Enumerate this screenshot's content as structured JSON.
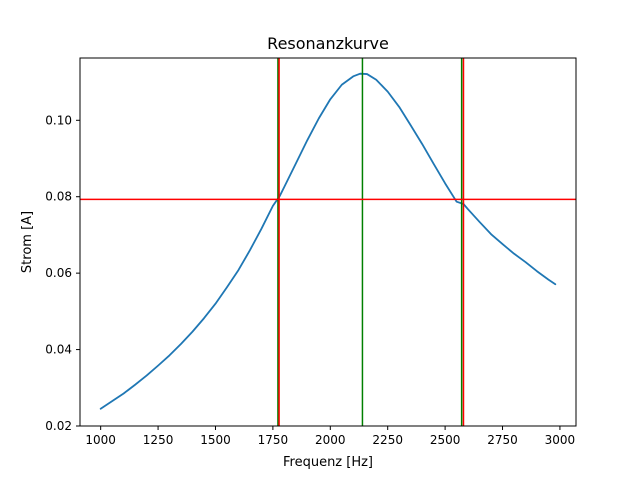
{
  "chart_data": {
    "type": "line",
    "title": "Resonanzkurve",
    "xlabel": "Frequenz [Hz]",
    "ylabel": "Strom [A]",
    "xlim": [
      910,
      3070
    ],
    "ylim": [
      0.02,
      0.1163
    ],
    "x_ticks": [
      1000,
      1250,
      1500,
      1750,
      2000,
      2250,
      2500,
      2750,
      3000
    ],
    "x_tick_labels": [
      "1000",
      "1250",
      "1500",
      "1750",
      "2000",
      "2250",
      "2500",
      "2750",
      "3000"
    ],
    "y_ticks": [
      0.02,
      0.04,
      0.06,
      0.08,
      0.1
    ],
    "y_tick_labels": [
      "0.02",
      "0.04",
      "0.06",
      "0.08",
      "0.10"
    ],
    "grid": false,
    "series": [
      {
        "color": "#1f77b4",
        "x": [
          1000,
          1050,
          1100,
          1150,
          1200,
          1250,
          1300,
          1350,
          1400,
          1450,
          1500,
          1550,
          1600,
          1650,
          1700,
          1750,
          1780,
          1800,
          1850,
          1900,
          1950,
          2000,
          2050,
          2100,
          2130,
          2160,
          2200,
          2250,
          2300,
          2350,
          2400,
          2450,
          2500,
          2550,
          2580,
          2600,
          2650,
          2700,
          2750,
          2800,
          2850,
          2900,
          2950,
          2980
        ],
        "y": [
          0.0245,
          0.0265,
          0.0285,
          0.0308,
          0.0332,
          0.0358,
          0.0385,
          0.0415,
          0.0447,
          0.0482,
          0.052,
          0.0563,
          0.0608,
          0.066,
          0.0716,
          0.0776,
          0.0802,
          0.0826,
          0.0887,
          0.0948,
          0.1005,
          0.1055,
          0.1093,
          0.1115,
          0.1122,
          0.1121,
          0.1106,
          0.1075,
          0.1035,
          0.0987,
          0.0938,
          0.0886,
          0.0835,
          0.0787,
          0.0781,
          0.0767,
          0.0734,
          0.0702,
          0.0676,
          0.0651,
          0.0629,
          0.0605,
          0.0583,
          0.0571
        ]
      }
    ],
    "vertical_lines": [
      {
        "x": 1772,
        "color": "#008000"
      },
      {
        "x": 1777,
        "color": "#ff0000"
      },
      {
        "x": 2140,
        "color": "#008000"
      },
      {
        "x": 2572,
        "color": "#008000"
      },
      {
        "x": 2580,
        "color": "#ff0000"
      }
    ],
    "horizontal_lines": [
      {
        "y": 0.0793,
        "color": "#ff0000"
      }
    ]
  }
}
